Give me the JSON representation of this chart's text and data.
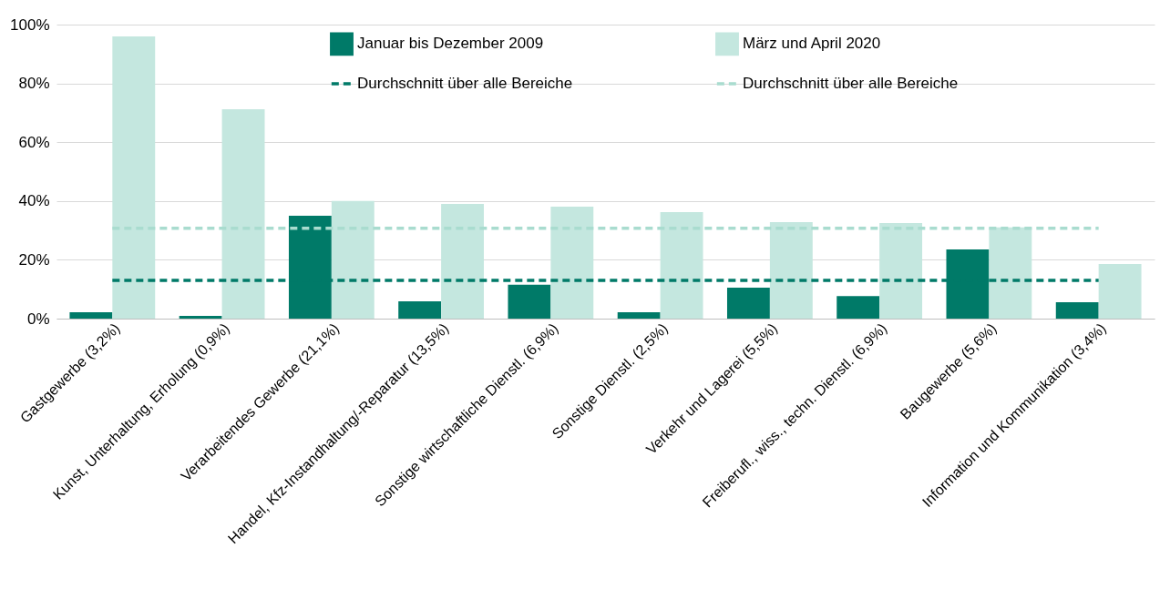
{
  "chart_data": {
    "type": "bar",
    "categories": [
      "Gastgewerbe (3,2%)",
      "Kunst, Unterhaltung, Erholung (0,9%)",
      "Verarbeitendes Gewerbe (21,1%)",
      "Handel, Kfz-Instandhaltung/-Reparatur (13,5%)",
      "Sonstige wirtschaftliche Dienstl. (6,9%)",
      "Sonstige Dienstl. (2,5%)",
      "Verkehr und Lagerei (5,5%)",
      "Freiberufl., wiss., techn. Dienstl. (6,9%)",
      "Baugewerbe (5,6%)",
      "Information und Kommunikation (3,4%)"
    ],
    "series": [
      {
        "name": "Januar bis Dezember 2009",
        "color": "#007a68",
        "values": [
          2.2,
          0.9,
          35.0,
          5.9,
          11.5,
          2.2,
          10.5,
          7.7,
          23.5,
          5.6
        ]
      },
      {
        "name": "März und April 2020",
        "color": "#c4e7df",
        "values": [
          96.0,
          71.2,
          40.0,
          39.0,
          38.1,
          36.2,
          32.8,
          32.5,
          31.0,
          18.6
        ]
      },
      {
        "name": "Durchschnitt über alle Bereiche",
        "type": "line",
        "line_style": "dashed",
        "color": "#007a68",
        "values": [
          13,
          13,
          13,
          13,
          13,
          13,
          13,
          13,
          13,
          13
        ]
      },
      {
        "name": "Durchschnitt über alle Bereiche",
        "type": "line",
        "line_style": "dashed",
        "color": "#a9dccf",
        "values": [
          30.7,
          30.7,
          30.7,
          30.7,
          30.7,
          30.7,
          30.7,
          30.7,
          30.7,
          30.7
        ]
      }
    ],
    "ylim": [
      0,
      100
    ],
    "yticks": [
      {
        "value": 0,
        "label": "0%"
      },
      {
        "value": 20,
        "label": "20%"
      },
      {
        "value": 40,
        "label": "40%"
      },
      {
        "value": 60,
        "label": "60%"
      },
      {
        "value": 80,
        "label": "80%"
      },
      {
        "value": 100,
        "label": "100%"
      }
    ],
    "grid": "y",
    "legend": "top"
  }
}
